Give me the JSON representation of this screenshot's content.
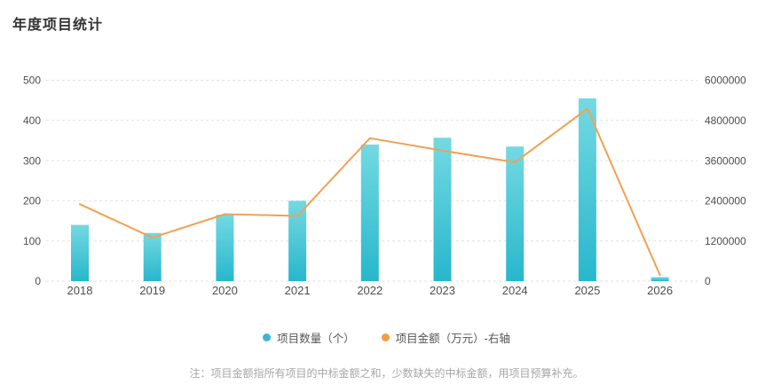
{
  "title": "年度项目统计",
  "note": "注：项目金额指所有项目的中标金额之和，少数缺失的中标金额，用项目预算补充。",
  "legend": [
    {
      "label": "项目数量（个）",
      "dot_color": "#3db4d8"
    },
    {
      "label": "项目金额（万元）-右轴",
      "dot_color": "#f79c42"
    }
  ],
  "colors": {
    "bar_top": "#74d9e2",
    "bar_bottom": "#27b7cc",
    "line": "#f2a152",
    "grid": "#e2e2e2",
    "axis_text": "#4e4e4e",
    "title_text": "#333333",
    "note_text": "#a6a6a6",
    "background": "#ffffff"
  },
  "chart_data": {
    "type": "bar",
    "subtype": "bar-line-combo",
    "title": "年度项目统计",
    "categories": [
      "2018",
      "2019",
      "2020",
      "2021",
      "2022",
      "2023",
      "2024",
      "2025",
      "2026"
    ],
    "series": [
      {
        "name": "项目数量（个）",
        "type": "bar",
        "axis": "left",
        "values": [
          140,
          120,
          165,
          200,
          340,
          357,
          335,
          455,
          10
        ]
      },
      {
        "name": "项目金额（万元）-右轴",
        "type": "line",
        "axis": "right",
        "values": [
          2300000,
          1300000,
          2000000,
          1950000,
          4270000,
          3900000,
          3550000,
          5150000,
          180000
        ]
      }
    ],
    "left_axis": {
      "min": 0,
      "max": 500,
      "step": 100,
      "ticks": [
        0,
        100,
        200,
        300,
        400,
        500
      ]
    },
    "right_axis": {
      "min": 0,
      "max": 6000000,
      "step": 1200000,
      "ticks": [
        0,
        1200000,
        2400000,
        3600000,
        4800000,
        6000000
      ]
    },
    "grid": "horizontal-dashed",
    "legend_position": "bottom-center",
    "xlabel": "",
    "ylabel": ""
  }
}
